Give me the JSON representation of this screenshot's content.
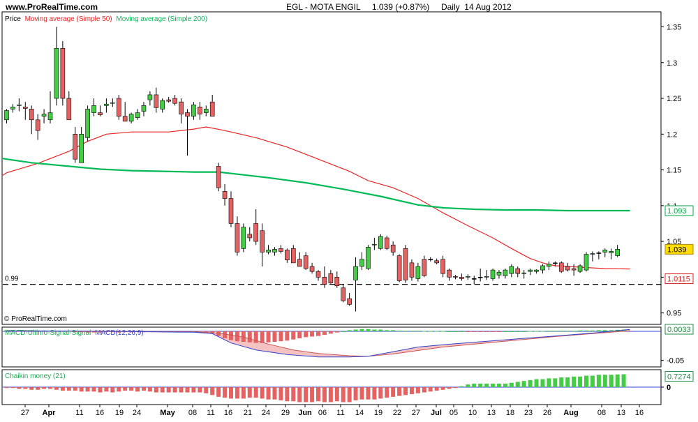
{
  "header": {
    "site": "www.ProRealTime.com",
    "title": "EGL - MOTA ENGIL     1.039 (+0.87%)     Daily  14 Aug 2012",
    "copyright": "© ProRealTime.com"
  },
  "colors": {
    "up": "#44cc44",
    "down": "#e46262",
    "sma50": "#ee2222",
    "sma200": "#00bb55",
    "macd": "#3344cc",
    "signal": "#cc5555",
    "price_badge": "#ffdd00"
  },
  "chart_data": [
    {
      "type": "candlestick",
      "legend": [
        "Price",
        "Moving average (Simple 50)",
        "Moving average (Simple 200)"
      ],
      "ylim": [
        0.935,
        1.37
      ],
      "y_ticks": [
        0.95,
        1,
        1.05,
        1.1,
        1.15,
        1.2,
        1.25,
        1.3,
        1.35
      ],
      "x_ticks": [
        "27",
        "Apr",
        "11",
        "16",
        "19",
        "24",
        "May",
        "08",
        "11",
        "16",
        "21",
        "24",
        "29",
        "Jun",
        "06",
        "11",
        "14",
        "19",
        "22",
        "27",
        "Jul",
        "05",
        "10",
        "13",
        "18",
        "23",
        "26",
        "Aug",
        "08",
        "13",
        "16"
      ],
      "support_line": {
        "label": "0.99",
        "value": 0.99
      },
      "last_price": "1.039",
      "sma200_last": "1.093",
      "sma50_last": "1.0115",
      "candles": [
        {
          "o": 1.22,
          "h": 1.235,
          "l": 1.215,
          "c": 1.233
        },
        {
          "o": 1.235,
          "h": 1.242,
          "l": 1.23,
          "c": 1.238
        },
        {
          "o": 1.24,
          "h": 1.25,
          "l": 1.232,
          "c": 1.241
        },
        {
          "o": 1.238,
          "h": 1.245,
          "l": 1.22,
          "c": 1.236
        },
        {
          "o": 1.235,
          "h": 1.24,
          "l": 1.2,
          "c": 1.22
        },
        {
          "o": 1.22,
          "h": 1.228,
          "l": 1.192,
          "c": 1.205
        },
        {
          "o": 1.225,
          "h": 1.235,
          "l": 1.215,
          "c": 1.228
        },
        {
          "o": 1.22,
          "h": 1.26,
          "l": 1.215,
          "c": 1.23
        },
        {
          "o": 1.25,
          "h": 1.35,
          "l": 1.24,
          "c": 1.32
        },
        {
          "o": 1.32,
          "h": 1.33,
          "l": 1.24,
          "c": 1.25
        },
        {
          "o": 1.25,
          "h": 1.26,
          "l": 1.22,
          "c": 1.22
        },
        {
          "o": 1.2,
          "h": 1.21,
          "l": 1.16,
          "c": 1.165
        },
        {
          "o": 1.16,
          "h": 1.21,
          "l": 1.16,
          "c": 1.2
        },
        {
          "o": 1.195,
          "h": 1.24,
          "l": 1.19,
          "c": 1.235
        },
        {
          "o": 1.23,
          "h": 1.25,
          "l": 1.225,
          "c": 1.24
        },
        {
          "o": 1.23,
          "h": 1.24,
          "l": 1.225,
          "c": 1.227
        },
        {
          "o": 1.24,
          "h": 1.25,
          "l": 1.23,
          "c": 1.242
        },
        {
          "o": 1.243,
          "h": 1.25,
          "l": 1.238,
          "c": 1.244
        },
        {
          "o": 1.25,
          "h": 1.255,
          "l": 1.22,
          "c": 1.225
        },
        {
          "o": 1.225,
          "h": 1.245,
          "l": 1.218,
          "c": 1.218
        },
        {
          "o": 1.218,
          "h": 1.23,
          "l": 1.215,
          "c": 1.228
        },
        {
          "o": 1.223,
          "h": 1.235,
          "l": 1.22,
          "c": 1.23
        },
        {
          "o": 1.232,
          "h": 1.245,
          "l": 1.225,
          "c": 1.24
        },
        {
          "o": 1.248,
          "h": 1.26,
          "l": 1.24,
          "c": 1.255
        },
        {
          "o": 1.255,
          "h": 1.265,
          "l": 1.23,
          "c": 1.237
        },
        {
          "o": 1.235,
          "h": 1.25,
          "l": 1.23,
          "c": 1.247
        },
        {
          "o": 1.248,
          "h": 1.252,
          "l": 1.244,
          "c": 1.246
        },
        {
          "o": 1.25,
          "h": 1.255,
          "l": 1.24,
          "c": 1.243
        },
        {
          "o": 1.245,
          "h": 1.25,
          "l": 1.215,
          "c": 1.228
        },
        {
          "o": 1.23,
          "h": 1.235,
          "l": 1.17,
          "c": 1.225
        },
        {
          "o": 1.225,
          "h": 1.245,
          "l": 1.22,
          "c": 1.241
        },
        {
          "o": 1.238,
          "h": 1.245,
          "l": 1.22,
          "c": 1.228
        },
        {
          "o": 1.23,
          "h": 1.24,
          "l": 1.225,
          "c": 1.235
        },
        {
          "o": 1.245,
          "h": 1.255,
          "l": 1.225,
          "c": 1.225
        },
        {
          "o": 1.155,
          "h": 1.16,
          "l": 1.12,
          "c": 1.125
        },
        {
          "o": 1.12,
          "h": 1.13,
          "l": 1.1,
          "c": 1.11
        },
        {
          "o": 1.11,
          "h": 1.12,
          "l": 1.07,
          "c": 1.075
        },
        {
          "o": 1.075,
          "h": 1.085,
          "l": 1.03,
          "c": 1.035
        },
        {
          "o": 1.04,
          "h": 1.075,
          "l": 1.035,
          "c": 1.07
        },
        {
          "o": 1.06,
          "h": 1.07,
          "l": 1.05,
          "c": 1.055
        },
        {
          "o": 1.075,
          "h": 1.095,
          "l": 1.045,
          "c": 1.05
        },
        {
          "o": 1.065,
          "h": 1.075,
          "l": 1.015,
          "c": 1.035
        },
        {
          "o": 1.035,
          "h": 1.045,
          "l": 1.032,
          "c": 1.038
        },
        {
          "o": 1.035,
          "h": 1.042,
          "l": 1.03,
          "c": 1.039
        },
        {
          "o": 1.04,
          "h": 1.045,
          "l": 1.033,
          "c": 1.036
        },
        {
          "o": 1.038,
          "h": 1.04,
          "l": 1.02,
          "c": 1.024
        },
        {
          "o": 1.04,
          "h": 1.045,
          "l": 1.02,
          "c": 1.02
        },
        {
          "o": 1.025,
          "h": 1.035,
          "l": 1.015,
          "c": 1.015
        },
        {
          "o": 1.03,
          "h": 1.035,
          "l": 1.01,
          "c": 1.012
        },
        {
          "o": 1.015,
          "h": 1.02,
          "l": 1.005,
          "c": 1.008
        },
        {
          "o": 1.008,
          "h": 1.01,
          "l": 0.995,
          "c": 1.0
        },
        {
          "o": 1.0,
          "h": 1.015,
          "l": 0.985,
          "c": 0.99
        },
        {
          "o": 1.005,
          "h": 1.01,
          "l": 0.99,
          "c": 0.992
        },
        {
          "o": 1.0,
          "h": 1.008,
          "l": 0.985,
          "c": 0.988
        },
        {
          "o": 0.985,
          "h": 0.99,
          "l": 0.965,
          "c": 0.967
        },
        {
          "o": 0.97,
          "h": 0.978,
          "l": 0.96,
          "c": 0.962
        },
        {
          "o": 0.996,
          "h": 1.028,
          "l": 0.952,
          "c": 1.015
        },
        {
          "o": 1.015,
          "h": 1.035,
          "l": 1.01,
          "c": 1.025
        },
        {
          "o": 1.012,
          "h": 1.045,
          "l": 1.01,
          "c": 1.042
        },
        {
          "o": 1.045,
          "h": 1.055,
          "l": 1.038,
          "c": 1.046
        },
        {
          "o": 1.04,
          "h": 1.06,
          "l": 1.038,
          "c": 1.057
        },
        {
          "o": 1.055,
          "h": 1.058,
          "l": 1.038,
          "c": 1.04
        },
        {
          "o": 1.045,
          "h": 1.05,
          "l": 1.03,
          "c": 1.035
        },
        {
          "o": 1.03,
          "h": 1.032,
          "l": 0.993,
          "c": 0.995
        },
        {
          "o": 1.04,
          "h": 1.045,
          "l": 0.992,
          "c": 0.996
        },
        {
          "o": 1.02,
          "h": 1.025,
          "l": 0.995,
          "c": 1.0
        },
        {
          "o": 0.998,
          "h": 1.02,
          "l": 0.994,
          "c": 1.015
        },
        {
          "o": 1.025,
          "h": 1.03,
          "l": 1.0,
          "c": 1.002
        },
        {
          "o": 1.025,
          "h": 1.028,
          "l": 1.022,
          "c": 1.025
        },
        {
          "o": 1.023,
          "h": 1.026,
          "l": 1.018,
          "c": 1.02
        },
        {
          "o": 1.025,
          "h": 1.03,
          "l": 1.0,
          "c": 1.005
        },
        {
          "o": 1.01,
          "h": 1.012,
          "l": 0.995,
          "c": 1.0
        },
        {
          "o": 1.001,
          "h": 1.003,
          "l": 0.997,
          "c": 1.0
        },
        {
          "o": 1.0,
          "h": 1.005,
          "l": 0.995,
          "c": 0.998
        },
        {
          "o": 1.0,
          "h": 1.004,
          "l": 0.996,
          "c": 1.001
        },
        {
          "o": 0.998,
          "h": 1.002,
          "l": 0.99,
          "c": 0.998
        },
        {
          "o": 1.0,
          "h": 1.012,
          "l": 0.994,
          "c": 1.0
        },
        {
          "o": 1.0,
          "h": 1.01,
          "l": 0.996,
          "c": 1.001
        },
        {
          "o": 0.998,
          "h": 1.012,
          "l": 0.995,
          "c": 1.01
        },
        {
          "o": 1.003,
          "h": 1.01,
          "l": 0.998,
          "c": 1.007
        },
        {
          "o": 1.002,
          "h": 1.012,
          "l": 0.998,
          "c": 1.01
        },
        {
          "o": 1.005,
          "h": 1.018,
          "l": 1.0,
          "c": 1.015
        },
        {
          "o": 1.012,
          "h": 1.015,
          "l": 1.0,
          "c": 1.005
        },
        {
          "o": 1.005,
          "h": 1.01,
          "l": 0.998,
          "c": 1.006
        },
        {
          "o": 1.008,
          "h": 1.012,
          "l": 1.003,
          "c": 1.01
        },
        {
          "o": 1.008,
          "h": 1.011,
          "l": 1.005,
          "c": 1.01
        },
        {
          "o": 1.01,
          "h": 1.018,
          "l": 1.005,
          "c": 1.016
        },
        {
          "o": 1.015,
          "h": 1.022,
          "l": 1.01,
          "c": 1.018
        },
        {
          "o": 1.02,
          "h": 1.022,
          "l": 1.015,
          "c": 1.02
        },
        {
          "o": 1.02,
          "h": 1.022,
          "l": 1.006,
          "c": 1.008
        },
        {
          "o": 1.015,
          "h": 1.02,
          "l": 1.008,
          "c": 1.01
        },
        {
          "o": 1.012,
          "h": 1.018,
          "l": 1.002,
          "c": 1.01
        },
        {
          "o": 1.008,
          "h": 1.018,
          "l": 1.006,
          "c": 1.016
        },
        {
          "o": 1.01,
          "h": 1.035,
          "l": 1.008,
          "c": 1.032
        },
        {
          "o": 1.032,
          "h": 1.036,
          "l": 1.022,
          "c": 1.033
        },
        {
          "o": 1.034,
          "h": 1.036,
          "l": 1.025,
          "c": 1.034
        },
        {
          "o": 1.035,
          "h": 1.04,
          "l": 1.028,
          "c": 1.038
        },
        {
          "o": 1.034,
          "h": 1.04,
          "l": 1.025,
          "c": 1.036
        },
        {
          "o": 1.03,
          "h": 1.045,
          "l": 1.028,
          "c": 1.039
        }
      ],
      "sma50": [
        [
          0,
          1.146
        ],
        [
          5,
          1.159
        ],
        [
          10,
          1.176
        ],
        [
          13,
          1.19
        ],
        [
          16,
          1.2
        ],
        [
          20,
          1.203
        ],
        [
          26,
          1.203
        ],
        [
          30,
          1.207
        ],
        [
          32,
          1.21
        ],
        [
          35,
          1.205
        ],
        [
          40,
          1.195
        ],
        [
          45,
          1.182
        ],
        [
          50,
          1.165
        ],
        [
          55,
          1.148
        ],
        [
          58,
          1.135
        ],
        [
          62,
          1.125
        ],
        [
          66,
          1.11
        ],
        [
          70,
          1.09
        ],
        [
          74,
          1.072
        ],
        [
          78,
          1.055
        ],
        [
          81,
          1.04
        ],
        [
          84,
          1.026
        ],
        [
          86,
          1.02
        ],
        [
          88,
          1.016
        ],
        [
          92,
          1.014
        ],
        [
          96,
          1.012
        ],
        [
          100,
          1.0115
        ]
      ],
      "sma200": [
        [
          0,
          1.165
        ],
        [
          4,
          1.16
        ],
        [
          10,
          1.155
        ],
        [
          15,
          1.151
        ],
        [
          20,
          1.149
        ],
        [
          25,
          1.148
        ],
        [
          30,
          1.147
        ],
        [
          34,
          1.147
        ],
        [
          38,
          1.143
        ],
        [
          42,
          1.139
        ],
        [
          48,
          1.132
        ],
        [
          54,
          1.123
        ],
        [
          60,
          1.113
        ],
        [
          66,
          1.101
        ],
        [
          70,
          1.097
        ],
        [
          75,
          1.095
        ],
        [
          80,
          1.094
        ],
        [
          85,
          1.094
        ],
        [
          90,
          1.093
        ],
        [
          100,
          1.093
        ]
      ]
    },
    {
      "type": "bar",
      "legend": "MACD(12,26,9)",
      "legend_prefix": "MACD-Ultimo-Signal-Signal",
      "ylim": [
        -0.06,
        0.006
      ],
      "y_ticks": [
        -0.05
      ],
      "last_value": "0.0033",
      "histogram": [
        0.002,
        0.0025,
        0.0025,
        0.002,
        0.002,
        0.0015,
        0.0015,
        0.001,
        0.001,
        0.001,
        0.0005,
        -0.001,
        -0.0015,
        -0.002,
        -0.002,
        -0.002,
        -0.0015,
        -0.0015,
        -0.002,
        -0.0015,
        -0.0015,
        -0.001,
        -0.0015,
        -0.001,
        -0.001,
        -0.0015,
        -0.0015,
        -0.001,
        -0.001,
        -0.0015,
        -0.001,
        -0.0015,
        -0.002,
        -0.004,
        -0.008,
        -0.012,
        -0.015,
        -0.017,
        -0.018,
        -0.019,
        -0.02,
        -0.02,
        -0.019,
        -0.018,
        -0.017,
        -0.016,
        -0.014,
        -0.012,
        -0.01,
        -0.009,
        -0.008,
        -0.006,
        -0.004,
        -0.002,
        0.0,
        0.002,
        0.003,
        0.004,
        0.004,
        0.003,
        0.003,
        0.002,
        0.002,
        0.001,
        0.001,
        0.001,
        0.001,
        0.0005,
        0.0005,
        0.0005,
        0.0005,
        0.0,
        0.0,
        0.0,
        -0.0005,
        -0.0005,
        -0.0005,
        -0.0005,
        -0.0005,
        -0.0005,
        0.0,
        0.0,
        0.0,
        0.0,
        0.0005,
        0.0005,
        0.0005,
        0.001,
        0.001,
        0.001,
        0.001,
        0.001,
        0.0015,
        0.0015,
        0.0015,
        0.002,
        0.002,
        0.002,
        0.0025,
        0.003
      ],
      "macd_line": [
        [
          0,
          0.001
        ],
        [
          10,
          0.0005
        ],
        [
          20,
          -0.0005
        ],
        [
          30,
          -0.0015
        ],
        [
          33,
          -0.004
        ],
        [
          36,
          -0.02
        ],
        [
          40,
          -0.032
        ],
        [
          45,
          -0.04
        ],
        [
          50,
          -0.044
        ],
        [
          55,
          -0.044
        ],
        [
          58,
          -0.043
        ],
        [
          62,
          -0.035
        ],
        [
          66,
          -0.027
        ],
        [
          70,
          -0.023
        ],
        [
          76,
          -0.018
        ],
        [
          82,
          -0.013
        ],
        [
          88,
          -0.008
        ],
        [
          94,
          -0.003
        ],
        [
          100,
          0.0033
        ]
      ],
      "signal_line": [
        [
          0,
          0.0005
        ],
        [
          10,
          0.0005
        ],
        [
          20,
          0.0
        ],
        [
          30,
          -0.001
        ],
        [
          34,
          -0.003
        ],
        [
          38,
          -0.01
        ],
        [
          42,
          -0.022
        ],
        [
          46,
          -0.032
        ],
        [
          50,
          -0.038
        ],
        [
          55,
          -0.042
        ],
        [
          58,
          -0.043
        ],
        [
          62,
          -0.039
        ],
        [
          66,
          -0.033
        ],
        [
          70,
          -0.027
        ],
        [
          76,
          -0.021
        ],
        [
          82,
          -0.015
        ],
        [
          88,
          -0.009
        ],
        [
          94,
          -0.004
        ],
        [
          100,
          0.001
        ]
      ]
    },
    {
      "type": "bar",
      "legend": "Chaikin money (21)",
      "ylim": [
        -0.95,
        0.95
      ],
      "y_ticks": [
        0
      ],
      "last_value": "0.7274",
      "values": [
        -0.05,
        -0.05,
        -0.1,
        -0.1,
        -0.15,
        -0.15,
        -0.1,
        -0.1,
        -0.15,
        -0.2,
        -0.2,
        -0.2,
        -0.25,
        -0.25,
        -0.25,
        -0.3,
        -0.25,
        -0.3,
        -0.25,
        -0.2,
        -0.2,
        -0.25,
        -0.2,
        -0.25,
        -0.3,
        -0.3,
        -0.3,
        -0.3,
        -0.3,
        -0.3,
        -0.3,
        -0.3,
        -0.35,
        -0.45,
        -0.55,
        -0.6,
        -0.65,
        -0.65,
        -0.65,
        -0.6,
        -0.6,
        -0.65,
        -0.7,
        -0.7,
        -0.75,
        -0.8,
        -0.8,
        -0.85,
        -0.85,
        -0.85,
        -0.8,
        -0.85,
        -0.85,
        -0.8,
        -0.85,
        -0.85,
        -0.75,
        -0.7,
        -0.7,
        -0.7,
        -0.65,
        -0.6,
        -0.55,
        -0.5,
        -0.45,
        -0.4,
        -0.35,
        -0.3,
        -0.25,
        -0.2,
        -0.15,
        -0.1,
        -0.05,
        0.05,
        0.15,
        0.2,
        0.2,
        0.2,
        0.2,
        0.2,
        0.2,
        0.25,
        0.3,
        0.35,
        0.4,
        0.45,
        0.45,
        0.5,
        0.5,
        0.55,
        0.55,
        0.6,
        0.6,
        0.65,
        0.65,
        0.7,
        0.7,
        0.7,
        0.72,
        0.73
      ]
    }
  ]
}
